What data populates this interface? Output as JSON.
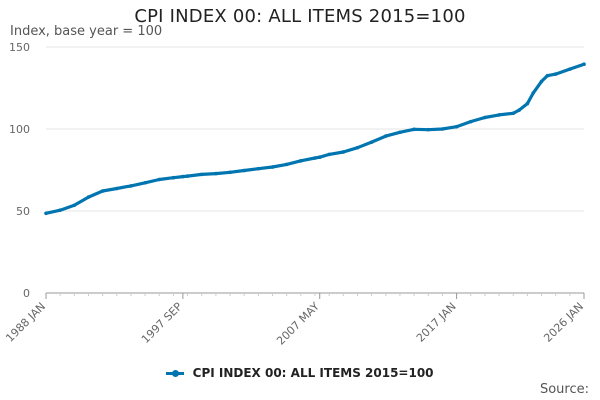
{
  "chart_data": {
    "type": "line",
    "title": "CPI INDEX 00: ALL ITEMS 2015=100",
    "ylabel": "Index, base year = 100",
    "xlabel": "",
    "ylim": [
      0,
      150
    ],
    "yticks": [
      0,
      50,
      100,
      150
    ],
    "xticks": [
      "1988 JAN",
      "1997 SEP",
      "2007 MAY",
      "2017 JAN",
      "2026 JAN"
    ],
    "grid": "horizontal",
    "legend_position": "bottom",
    "series": [
      {
        "name": "CPI INDEX 00: ALL ITEMS 2015=100",
        "color": "#0075b0",
        "x": [
          "1988 JAN",
          "1989 JAN",
          "1990 JAN",
          "1991 JAN",
          "1992 JAN",
          "1993 JAN",
          "1994 JAN",
          "1995 JAN",
          "1996 JAN",
          "1997 JAN",
          "1997 SEP",
          "1998 JAN",
          "1999 JAN",
          "2000 JAN",
          "2001 JAN",
          "2002 JAN",
          "2003 JAN",
          "2004 JAN",
          "2005 JAN",
          "2006 JAN",
          "2007 JAN",
          "2007 MAY",
          "2008 JAN",
          "2009 JAN",
          "2010 JAN",
          "2011 JAN",
          "2012 JAN",
          "2013 JAN",
          "2014 JAN",
          "2015 JAN",
          "2016 JAN",
          "2017 JAN",
          "2018 JAN",
          "2019 JAN",
          "2020 JAN",
          "2021 JAN",
          "2021 JUN",
          "2022 JAN",
          "2022 JUN",
          "2023 JAN",
          "2023 JUN",
          "2024 JAN",
          "2025 JAN",
          "2026 JAN"
        ],
        "values": [
          48.6,
          50.5,
          53.5,
          58.5,
          62.2,
          63.7,
          65.3,
          67.2,
          69.2,
          70.3,
          71.0,
          71.3,
          72.3,
          72.8,
          73.6,
          74.7,
          75.8,
          76.8,
          78.4,
          80.6,
          82.3,
          82.8,
          84.5,
          86.0,
          88.6,
          92.0,
          95.7,
          98.0,
          99.8,
          99.6,
          100.0,
          101.4,
          104.5,
          107.0,
          108.6,
          109.6,
          111.5,
          115.5,
          122.0,
          129.0,
          132.5,
          133.5,
          136.5,
          139.5
        ]
      }
    ]
  },
  "source_label": "Source:"
}
